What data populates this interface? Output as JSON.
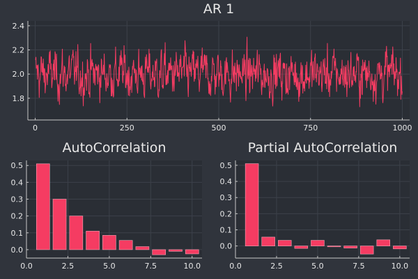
{
  "colors": {
    "background": "#30343c",
    "plot_background": "#2a2e35",
    "series": "#f53c62"
  },
  "chart_data": [
    {
      "id": "ar1",
      "type": "line",
      "title": "AR 1",
      "xlim": [
        -20,
        1020
      ],
      "ylim": [
        1.62,
        2.44
      ],
      "xticks": [
        0,
        250,
        500,
        750,
        1000
      ],
      "xtick_labels": [
        "0",
        "250",
        "500",
        "750",
        "1000"
      ],
      "yticks": [
        1.8,
        2.0,
        2.2,
        2.4
      ],
      "ytick_labels": [
        "1.8",
        "2.0",
        "2.2",
        "2.4"
      ],
      "grid": true,
      "legend": "none",
      "series": [
        {
          "n": 1000,
          "mean": 2.0,
          "phi": 0.5,
          "min": 1.64,
          "max": 2.42
        }
      ]
    },
    {
      "id": "acf",
      "type": "bar",
      "title": "AutoCorrelation",
      "x": [
        1,
        2,
        3,
        4,
        5,
        6,
        7,
        8,
        9,
        10
      ],
      "values": [
        0.51,
        0.3,
        0.2,
        0.11,
        0.085,
        0.055,
        0.018,
        -0.03,
        -0.01,
        -0.025
      ],
      "xlim": [
        0,
        10.6
      ],
      "ylim": [
        -0.05,
        0.53
      ],
      "xticks": [
        0,
        2.5,
        5,
        7.5,
        10
      ],
      "xtick_labels": [
        "0.0",
        "2.5",
        "5.0",
        "7.5",
        "10.0"
      ],
      "yticks": [
        0,
        0.1,
        0.2,
        0.3,
        0.4,
        0.5
      ],
      "ytick_labels": [
        "0.0",
        "0.1",
        "0.2",
        "0.3",
        "0.4",
        "0.5"
      ],
      "grid": true,
      "legend": "none"
    },
    {
      "id": "pacf",
      "type": "bar",
      "title": "Partial AutoCorrelation",
      "x": [
        1,
        2,
        3,
        4,
        5,
        6,
        7,
        8,
        9,
        10
      ],
      "values": [
        0.51,
        0.055,
        0.035,
        -0.015,
        0.035,
        -0.005,
        -0.013,
        -0.05,
        0.038,
        -0.018
      ],
      "xlim": [
        0,
        10.6
      ],
      "ylim": [
        -0.075,
        0.53
      ],
      "xticks": [
        0,
        2.5,
        5,
        7.5,
        10
      ],
      "xtick_labels": [
        "0.0",
        "2.5",
        "5.0",
        "7.5",
        "10.0"
      ],
      "yticks": [
        0,
        0.1,
        0.2,
        0.3,
        0.4,
        0.5
      ],
      "ytick_labels": [
        "0.0",
        "0.1",
        "0.2",
        "0.3",
        "0.4",
        "0.5"
      ],
      "grid": true,
      "legend": "none"
    }
  ]
}
